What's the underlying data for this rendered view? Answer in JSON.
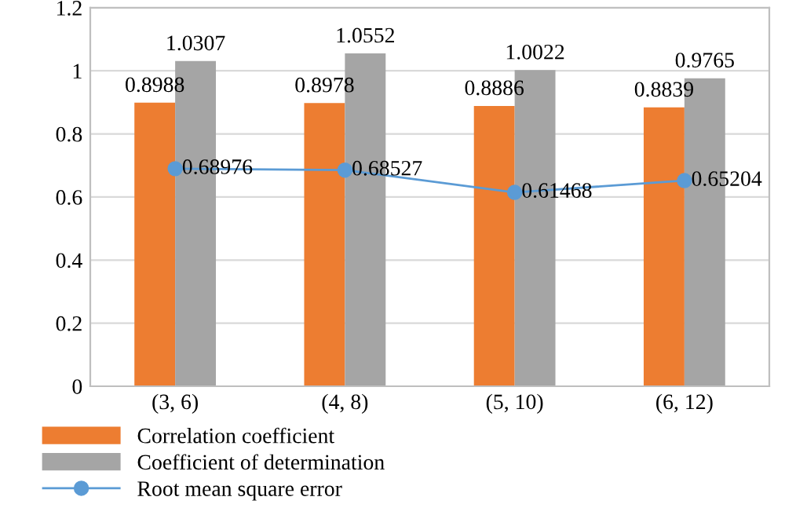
{
  "chart_data": {
    "type": "bar",
    "categories": [
      "(3, 6)",
      "(4, 8)",
      "(5, 10)",
      "(6, 12)"
    ],
    "series": [
      {
        "name": "Correlation coefficient",
        "color": "#ed7d31",
        "values": [
          0.8988,
          0.8978,
          0.8886,
          0.8839
        ]
      },
      {
        "name": "Coefficient of determination",
        "color": "#a5a5a5",
        "values": [
          1.0307,
          1.0552,
          1.0022,
          0.9765
        ]
      },
      {
        "name": "Root mean square error",
        "color": "#5b9bd5",
        "type": "line",
        "marker": "circle",
        "values": [
          0.68976,
          0.68527,
          0.61468,
          0.65204
        ]
      }
    ],
    "ylim": [
      0,
      1.2
    ],
    "yticks": [
      0,
      0.2,
      0.4,
      0.6,
      0.8,
      1,
      1.2
    ],
    "grid": "y",
    "legend": "bottom",
    "data_labels": true
  }
}
